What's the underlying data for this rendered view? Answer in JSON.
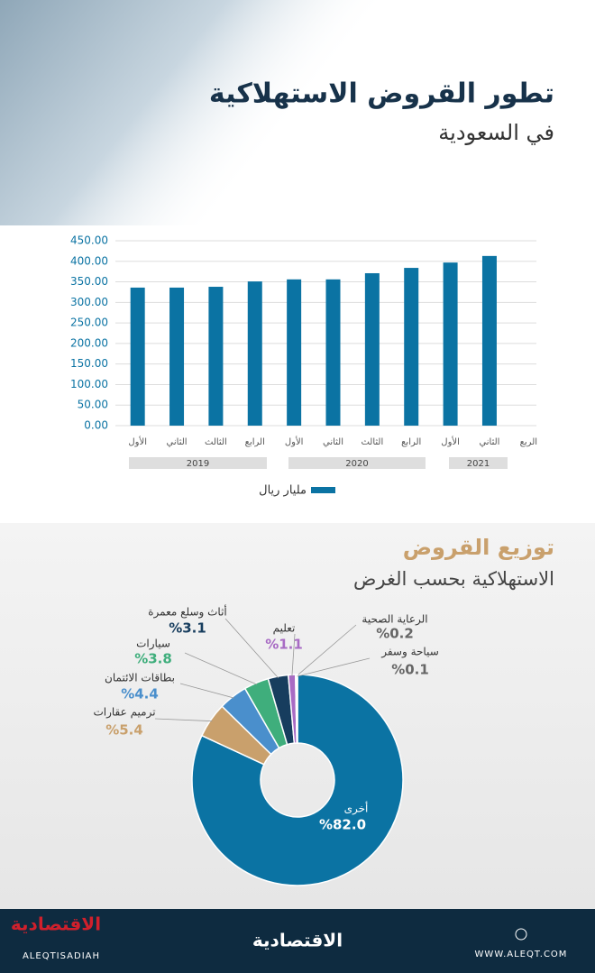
{
  "header": {
    "title": "تطور القروض الاستهلاكية",
    "subtitle": "في السعودية"
  },
  "chart_data": [
    {
      "type": "bar",
      "categories": [
        "الأول",
        "الثاني",
        "الثالث",
        "الرابع",
        "الأول",
        "الثاني",
        "الثالث",
        "الرابع",
        "الأول",
        "الثاني",
        "الربع"
      ],
      "groups": [
        "2019",
        "2020",
        "2021"
      ],
      "series": [
        {
          "name": "مليار ريال",
          "color": "#0b73a3",
          "values": [
            336,
            336,
            338,
            351,
            356,
            356,
            371,
            384,
            397,
            413,
            null
          ]
        }
      ],
      "ylim": [
        0,
        450
      ],
      "yticks": [
        {
          "value": 0,
          "label": "0.00"
        },
        {
          "value": 50,
          "label": "50.00"
        },
        {
          "value": 100,
          "label": "100.00"
        },
        {
          "value": 150,
          "label": "150.00"
        },
        {
          "value": 200,
          "label": "200.00"
        },
        {
          "value": 250,
          "label": "250.00"
        },
        {
          "value": 300,
          "label": "300.00"
        },
        {
          "value": 350,
          "label": "350.00"
        },
        {
          "value": 400,
          "label": "400.00"
        },
        {
          "value": 450,
          "label": "450.00"
        }
      ],
      "grid": true,
      "legend": "bottom"
    },
    {
      "type": "donut",
      "title": "توزيع القروض",
      "subtitle": "الاستهلاكية بحسب الغرض",
      "categories": [
        "أخرى",
        "ترميم عقارات",
        "بطاقات الائتمان",
        "سيارات",
        "أثاث وسلع معمرة",
        "تعليم",
        "الرعاية الصحية",
        "سياحة وسفر"
      ],
      "values": [
        82.0,
        5.4,
        4.4,
        3.8,
        3.1,
        1.1,
        0.2,
        0.1
      ],
      "value_labels": [
        "%82.0",
        "%5.4",
        "%4.4",
        "%3.8",
        "%3.1",
        "%1.1",
        "%0.2",
        "%0.1"
      ],
      "colors": [
        "#0b73a3",
        "#c9a06c",
        "#4a8fcc",
        "#3fae7c",
        "#173d5e",
        "#a86bc4",
        "#d8d8d8",
        "#bdbdbd"
      ],
      "label_colors": [
        "#ffffff",
        "#c9a06c",
        "#4a8fcc",
        "#3fae7c",
        "#173d5e",
        "#a86bc4",
        "#666666",
        "#666666"
      ]
    }
  ],
  "footer": {
    "brand": "الاقتصادية",
    "handle": "ALEQTISADIAH",
    "site": "WWW.ALEQT.COM"
  }
}
